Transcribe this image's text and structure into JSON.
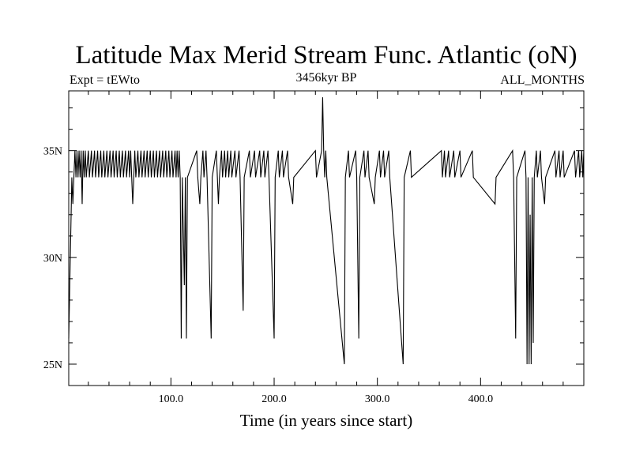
{
  "chart_data": {
    "type": "line",
    "title": "Latitude Max Merid Stream Func. Atlantic (oN)",
    "subtitle_left": "Expt = tEWto",
    "subtitle_center": "3456kyr BP",
    "subtitle_right": "ALL_MONTHS",
    "xlabel": "Time (in years since start)",
    "ylabel": "",
    "xlim": [
      1,
      500
    ],
    "ylim": [
      24,
      37.8
    ],
    "x_ticks": [
      {
        "value": 100,
        "label": "100.0"
      },
      {
        "value": 200,
        "label": "200.0"
      },
      {
        "value": 300,
        "label": "300.0"
      },
      {
        "value": 400,
        "label": "400.0"
      }
    ],
    "y_ticks": [
      {
        "value": 25,
        "label": "25N"
      },
      {
        "value": 30,
        "label": "30N"
      },
      {
        "value": 35,
        "label": "35N"
      }
    ],
    "baseline": 33.75,
    "grid": false,
    "series": [
      {
        "values": [
          [
            1,
            26.2
          ],
          [
            2,
            28.7
          ],
          [
            3,
            31.2
          ],
          [
            4,
            33.75
          ],
          [
            5,
            32.5
          ],
          [
            6,
            33.75
          ],
          [
            7,
            35
          ],
          [
            8,
            33.75
          ],
          [
            9,
            35
          ],
          [
            10,
            33.75
          ],
          [
            11,
            35
          ],
          [
            12,
            33.75
          ],
          [
            13,
            35
          ],
          [
            14,
            32.5
          ],
          [
            15,
            35
          ],
          [
            16,
            33.75
          ],
          [
            17,
            35
          ],
          [
            18,
            33.75
          ],
          [
            20,
            35
          ],
          [
            21,
            33.75
          ],
          [
            23,
            35
          ],
          [
            24,
            33.75
          ],
          [
            26,
            35
          ],
          [
            27,
            33.75
          ],
          [
            29,
            35
          ],
          [
            30,
            33.75
          ],
          [
            32,
            35
          ],
          [
            33,
            33.75
          ],
          [
            35,
            35
          ],
          [
            36,
            33.75
          ],
          [
            38,
            35
          ],
          [
            39,
            33.75
          ],
          [
            41,
            35
          ],
          [
            42,
            33.75
          ],
          [
            44,
            35
          ],
          [
            45,
            33.75
          ],
          [
            47,
            35
          ],
          [
            48,
            33.75
          ],
          [
            50,
            35
          ],
          [
            51,
            33.75
          ],
          [
            53,
            35
          ],
          [
            54,
            33.75
          ],
          [
            56,
            35
          ],
          [
            57,
            33.75
          ],
          [
            59,
            35
          ],
          [
            60,
            33.75
          ],
          [
            61,
            35
          ],
          [
            62,
            33.75
          ],
          [
            63,
            32.5
          ],
          [
            64,
            33.75
          ],
          [
            65,
            35
          ],
          [
            66,
            33.75
          ],
          [
            68,
            35
          ],
          [
            69,
            33.75
          ],
          [
            71,
            35
          ],
          [
            72,
            33.75
          ],
          [
            74,
            35
          ],
          [
            75,
            33.75
          ],
          [
            77,
            35
          ],
          [
            78,
            33.75
          ],
          [
            80,
            35
          ],
          [
            81,
            33.75
          ],
          [
            83,
            35
          ],
          [
            84,
            33.75
          ],
          [
            86,
            35
          ],
          [
            87,
            33.75
          ],
          [
            89,
            35
          ],
          [
            90,
            33.75
          ],
          [
            92,
            35
          ],
          [
            93,
            33.75
          ],
          [
            95,
            35
          ],
          [
            96,
            33.75
          ],
          [
            98,
            35
          ],
          [
            99,
            33.75
          ],
          [
            101,
            35
          ],
          [
            102,
            33.75
          ],
          [
            104,
            35
          ],
          [
            105,
            33.75
          ],
          [
            106,
            35
          ],
          [
            107,
            33.75
          ],
          [
            108,
            35
          ],
          [
            109,
            33.75
          ],
          [
            110,
            26.2
          ],
          [
            111,
            33.75
          ],
          [
            113,
            28.7
          ],
          [
            114,
            33.75
          ],
          [
            115,
            26.2
          ],
          [
            116,
            33.75
          ],
          [
            125,
            35
          ],
          [
            126,
            33.75
          ],
          [
            128,
            32.5
          ],
          [
            129,
            33.75
          ],
          [
            131,
            35
          ],
          [
            132,
            33.75
          ],
          [
            134,
            35
          ],
          [
            135,
            33.75
          ],
          [
            139,
            26.2
          ],
          [
            140,
            33.75
          ],
          [
            144,
            35
          ],
          [
            145,
            33.75
          ],
          [
            146,
            32.5
          ],
          [
            147,
            33.75
          ],
          [
            149,
            35
          ],
          [
            150,
            33.75
          ],
          [
            152,
            35
          ],
          [
            153,
            33.75
          ],
          [
            155,
            35
          ],
          [
            156,
            33.75
          ],
          [
            158,
            35
          ],
          [
            159,
            33.75
          ],
          [
            162,
            35
          ],
          [
            163,
            33.75
          ],
          [
            166,
            35
          ],
          [
            167,
            33.75
          ],
          [
            170,
            27.5
          ],
          [
            171,
            33.75
          ],
          [
            176,
            35
          ],
          [
            177,
            33.75
          ],
          [
            181,
            35
          ],
          [
            182,
            33.75
          ],
          [
            186,
            35
          ],
          [
            187,
            33.75
          ],
          [
            190,
            35
          ],
          [
            191,
            33.75
          ],
          [
            194,
            35
          ],
          [
            195,
            33.75
          ],
          [
            200,
            26.2
          ],
          [
            201,
            33.75
          ],
          [
            204,
            35
          ],
          [
            205,
            33.75
          ],
          [
            208,
            35
          ],
          [
            209,
            33.75
          ],
          [
            213,
            35
          ],
          [
            214,
            33.75
          ],
          [
            218,
            32.5
          ],
          [
            219,
            33.75
          ],
          [
            240,
            35
          ],
          [
            241,
            33.75
          ],
          [
            246,
            35
          ],
          [
            247,
            37.5
          ],
          [
            248,
            35
          ],
          [
            249,
            33.75
          ],
          [
            250,
            35
          ],
          [
            251,
            33.75
          ],
          [
            268,
            25
          ],
          [
            269,
            33.75
          ],
          [
            272,
            35
          ],
          [
            273,
            33.75
          ],
          [
            279,
            35
          ],
          [
            280,
            33.75
          ],
          [
            282,
            26.2
          ],
          [
            283,
            33.75
          ],
          [
            287,
            35
          ],
          [
            288,
            33.75
          ],
          [
            291,
            35
          ],
          [
            292,
            33.75
          ],
          [
            297,
            32.5
          ],
          [
            298,
            33.75
          ],
          [
            302,
            35
          ],
          [
            303,
            33.75
          ],
          [
            306,
            35
          ],
          [
            307,
            33.75
          ],
          [
            311,
            35
          ],
          [
            312,
            33.75
          ],
          [
            325,
            25
          ],
          [
            326,
            33.75
          ],
          [
            332,
            35
          ],
          [
            333,
            33.75
          ],
          [
            362,
            35
          ],
          [
            363,
            33.75
          ],
          [
            365,
            35
          ],
          [
            366,
            33.75
          ],
          [
            369,
            35
          ],
          [
            370,
            33.75
          ],
          [
            374,
            35
          ],
          [
            375,
            33.75
          ],
          [
            380,
            35
          ],
          [
            381,
            33.75
          ],
          [
            392,
            35
          ],
          [
            393,
            33.75
          ],
          [
            414,
            32.5
          ],
          [
            415,
            33.75
          ],
          [
            431,
            35
          ],
          [
            432,
            33.75
          ],
          [
            434,
            26.2
          ],
          [
            435,
            33.75
          ],
          [
            443,
            35
          ],
          [
            444,
            33.75
          ],
          [
            445,
            25
          ],
          [
            446,
            33.75
          ],
          [
            447,
            25
          ],
          [
            448,
            32
          ],
          [
            449,
            25
          ],
          [
            450,
            33.75
          ],
          [
            451,
            26
          ],
          [
            452,
            33.75
          ],
          [
            454,
            35
          ],
          [
            455,
            33.75
          ],
          [
            458,
            35
          ],
          [
            459,
            33.75
          ],
          [
            462,
            32.5
          ],
          [
            463,
            33.75
          ],
          [
            472,
            35
          ],
          [
            473,
            33.75
          ],
          [
            476,
            35
          ],
          [
            477,
            33.75
          ],
          [
            480,
            35
          ],
          [
            481,
            33.75
          ],
          [
            491,
            35
          ],
          [
            492,
            33.75
          ],
          [
            495,
            35
          ],
          [
            496,
            33.75
          ],
          [
            498,
            35
          ],
          [
            499,
            33.75
          ],
          [
            500,
            35
          ]
        ]
      }
    ]
  }
}
